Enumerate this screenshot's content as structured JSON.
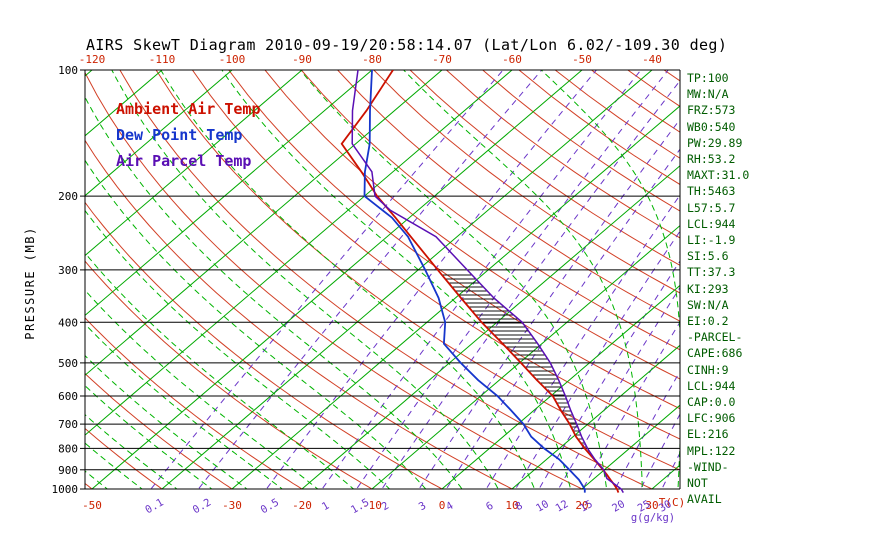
{
  "header": {
    "title": "AIRS SkewT Diagram 2010-09-19/20:58:14.07 (Lat/Lon 6.02/-109.30 deg)"
  },
  "axes": {
    "pressure_label": "PRESSURE (MB)",
    "pressure_ticks": [
      100,
      200,
      300,
      400,
      500,
      600,
      700,
      800,
      900,
      1000
    ],
    "top_temp_ticks": [
      -120,
      -110,
      -100,
      -90,
      -80,
      -70,
      -60,
      -50,
      -40
    ],
    "bottom_temp_ticks": [
      -50,
      -30,
      -20,
      -10,
      0,
      10,
      20,
      30
    ],
    "temp_unit_label": "T(C)",
    "mixing_ratio_values": [
      0.1,
      0.2,
      0.5,
      1,
      1.5,
      2,
      3,
      4,
      6,
      8,
      10,
      12,
      15,
      20,
      25,
      30
    ],
    "mixing_unit_label": "g(g/kg)"
  },
  "side_panel": {
    "lines": [
      "TP:100",
      "MW:N/A",
      "FRZ:573",
      "WB0:540",
      "PW:29.89",
      "RH:53.2",
      "MAXT:31.0",
      "TH:5463",
      "L57:5.7",
      "LCL:944",
      "LI:-1.9",
      "SI:5.6",
      "TT:37.3",
      "KI:293",
      "SW:N/A",
      "EI:0.2",
      "-PARCEL-",
      "CAPE:686",
      "CINH:9",
      "LCL:944",
      "CAP:0.0",
      "LFC:906",
      "EL:216",
      "MPL:122",
      "-WIND-",
      "NOT",
      "AVAIL"
    ]
  },
  "colors": {
    "isotherm_green": "#00a800",
    "moist_green": "#00b400",
    "dry_adiabat_red": "#d24026",
    "mixing_purple": "#6a35c8",
    "isobar_black": "#000000",
    "hatch_black": "#111111",
    "top_label_red": "#cc2200",
    "stats_green": "#005c00"
  },
  "chart_data": {
    "type": "line",
    "subtype": "skewt_log_p",
    "title": "AIRS SkewT Diagram 2010-09-19/20:58:14.07 (Lat/Lon 6.02/-109.30 deg)",
    "xlabel": "T(C)",
    "ylabel": "PRESSURE (MB)",
    "pressure_range_hpa": [
      100,
      1050
    ],
    "surface_temp_axis_range_c": [
      -50,
      35
    ],
    "grid": {
      "isobar_step_hpa": 100,
      "isotherm_step_c": 10,
      "dry_adiabat_step_c": 10,
      "moist_adiabat_step_c": 5,
      "isotherms_skewed": true
    },
    "series": [
      {
        "name": "Ambient Air Temp",
        "color": "#cc1100",
        "points_hpa_c": [
          [
            1020,
            25.8
          ],
          [
            1000,
            25.0
          ],
          [
            975,
            23.8
          ],
          [
            950,
            22.5
          ],
          [
            925,
            21.2
          ],
          [
            900,
            19.8
          ],
          [
            850,
            16.8
          ],
          [
            800,
            13.6
          ],
          [
            750,
            10.4
          ],
          [
            700,
            7.4
          ],
          [
            650,
            3.9
          ],
          [
            600,
            0.3
          ],
          [
            550,
            -4.6
          ],
          [
            500,
            -9.8
          ],
          [
            450,
            -15.6
          ],
          [
            400,
            -22.2
          ],
          [
            350,
            -29.2
          ],
          [
            300,
            -37.2
          ],
          [
            250,
            -46.6
          ],
          [
            225,
            -52.0
          ],
          [
            200,
            -58.2
          ],
          [
            175,
            -64.5
          ],
          [
            150,
            -72.0
          ],
          [
            125,
            -74.0
          ],
          [
            100,
            -77.0
          ]
        ]
      },
      {
        "name": "Dew Point Temp",
        "color": "#1636cc",
        "points_hpa_c": [
          [
            1020,
            21.0
          ],
          [
            1000,
            20.4
          ],
          [
            975,
            19.2
          ],
          [
            950,
            18.0
          ],
          [
            925,
            16.5
          ],
          [
            900,
            15.0
          ],
          [
            850,
            11.8
          ],
          [
            800,
            7.8
          ],
          [
            750,
            4.0
          ],
          [
            700,
            0.8
          ],
          [
            650,
            -3.2
          ],
          [
            600,
            -7.6
          ],
          [
            550,
            -13.0
          ],
          [
            500,
            -18.4
          ],
          [
            450,
            -24.0
          ],
          [
            400,
            -27.4
          ],
          [
            350,
            -32.4
          ],
          [
            300,
            -39.0
          ],
          [
            250,
            -47.0
          ],
          [
            225,
            -52.5
          ],
          [
            200,
            -60.0
          ],
          [
            175,
            -64.0
          ],
          [
            150,
            -68.0
          ],
          [
            125,
            -73.5
          ],
          [
            100,
            -80.0
          ]
        ]
      },
      {
        "name": "Air Parcel Temp",
        "color": "#5a0fb4",
        "points_hpa_c": [
          [
            1020,
            26.5
          ],
          [
            1000,
            25.6
          ],
          [
            944,
            21.8
          ],
          [
            900,
            19.9
          ],
          [
            850,
            16.9
          ],
          [
            800,
            14.0
          ],
          [
            750,
            11.2
          ],
          [
            700,
            8.4
          ],
          [
            650,
            5.3
          ],
          [
            600,
            2.1
          ],
          [
            550,
            -1.5
          ],
          [
            500,
            -5.6
          ],
          [
            450,
            -10.6
          ],
          [
            400,
            -16.4
          ],
          [
            350,
            -24.5
          ],
          [
            300,
            -33.0
          ],
          [
            250,
            -43.0
          ],
          [
            216,
            -54.0
          ],
          [
            200,
            -58.5
          ],
          [
            175,
            -63.0
          ],
          [
            150,
            -70.5
          ],
          [
            125,
            -76.0
          ],
          [
            100,
            -82.0
          ]
        ]
      }
    ],
    "cape_hatch": {
      "between": [
        "Ambient Air Temp",
        "Air Parcel Temp"
      ],
      "from_hpa": 905,
      "to_hpa": 303
    }
  }
}
